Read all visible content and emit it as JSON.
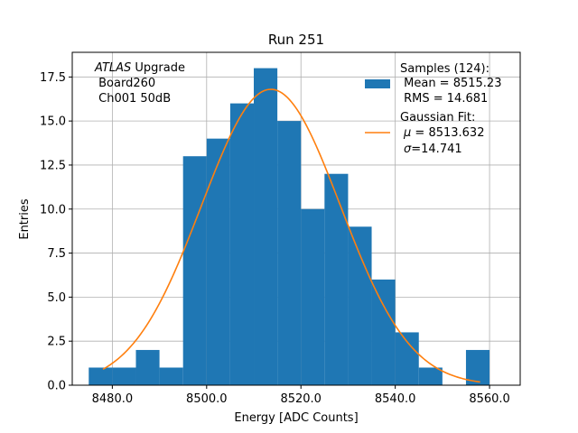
{
  "chart_data": {
    "type": "histogram",
    "title": "Run 251",
    "xlabel": "Energy [ADC Counts]",
    "ylabel": "Entries",
    "xlim": [
      8471.5,
      8566.5
    ],
    "ylim": [
      0,
      18.9
    ],
    "grid": true,
    "xticks": [
      8480,
      8500,
      8520,
      8540,
      8560
    ],
    "xtick_labels": [
      "8480.0",
      "8500.0",
      "8520.0",
      "8540.0",
      "8560.0"
    ],
    "yticks": [
      0,
      2.5,
      5,
      7.5,
      10,
      12.5,
      15,
      17.5
    ],
    "ytick_labels": [
      "0.0",
      "2.5",
      "5.0",
      "7.5",
      "10.0",
      "12.5",
      "15.0",
      "17.5"
    ],
    "histogram": {
      "name": "Samples",
      "color": "#1f77b4",
      "bin_edges": [
        8475,
        8480,
        8485,
        8490,
        8495,
        8500,
        8505,
        8510,
        8515,
        8520,
        8525,
        8530,
        8535,
        8540,
        8545,
        8550,
        8555,
        8560
      ],
      "counts": [
        1,
        1,
        2,
        1,
        13,
        14,
        16,
        18,
        15,
        10,
        12,
        9,
        6,
        3,
        1,
        0,
        2
      ]
    },
    "fit": {
      "name": "Gaussian Fit",
      "color": "#ff7f0e",
      "mu": 8513.632,
      "sigma": 14.741,
      "amplitude": 16.8,
      "x_range": [
        8478,
        8558
      ]
    },
    "annotation": {
      "line1_italic": "ATLAS",
      "line1_rest": " Upgrade",
      "line2": " Board260",
      "line3": " Ch001 50dB"
    },
    "legend": {
      "position": "top-right",
      "hist_line1": "Samples (124):",
      "hist_line2": " Mean = 8515.23",
      "hist_line3": " RMS = 14.681",
      "fit_line1": "Gaussian Fit:",
      "fit_mu_symbol": "μ",
      "fit_mu_rest": " = 8513.632",
      "fit_sigma_symbol": "σ",
      "fit_sigma_rest": "=14.741"
    }
  }
}
